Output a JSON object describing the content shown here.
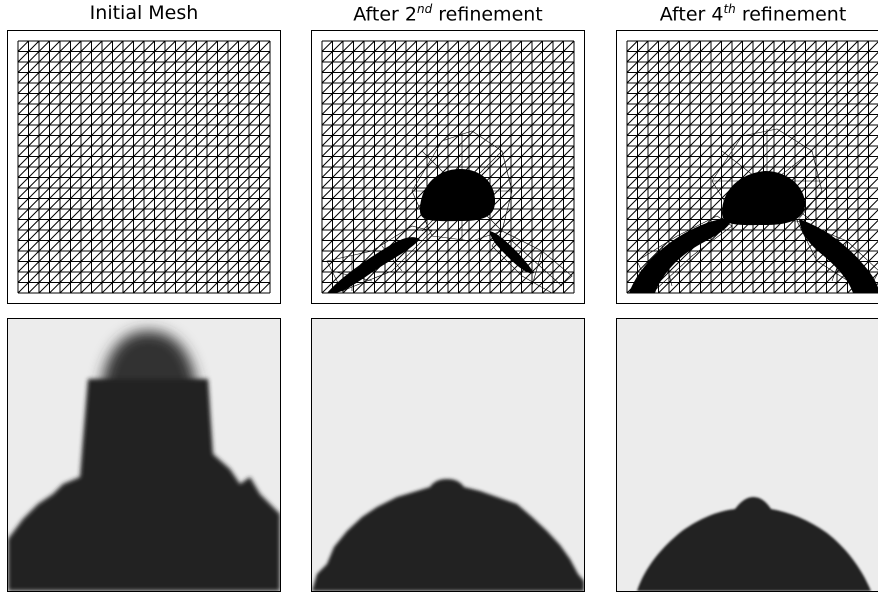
{
  "columns": [
    {
      "title_main": "Initial Mesh",
      "title_sup": "",
      "title_tail": ""
    },
    {
      "title_main": "After 2",
      "title_sup": "nd",
      "title_tail": " refinement"
    },
    {
      "title_main": "After 4",
      "title_sup": "th",
      "title_tail": " refinement"
    }
  ],
  "mesh": {
    "divisions": 24
  },
  "colors": {
    "ink": "#000000",
    "field_light": "#ececec",
    "field_dark": "#232323"
  }
}
